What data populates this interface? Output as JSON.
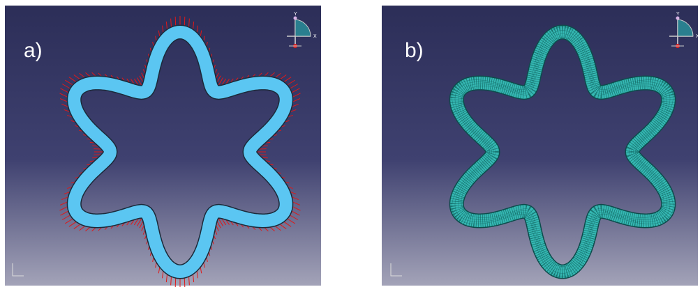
{
  "panels": [
    {
      "label": "a)"
    },
    {
      "label": "b)"
    }
  ],
  "triad": {
    "y": "Y",
    "x": "X"
  }
}
